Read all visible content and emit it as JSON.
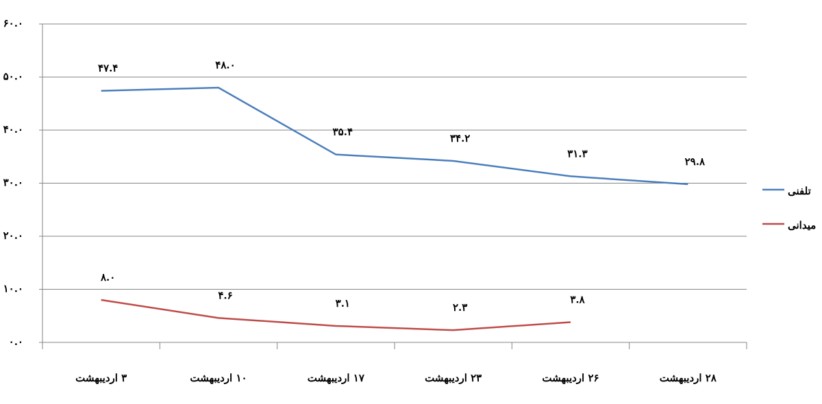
{
  "chart_data": {
    "type": "line",
    "categories": [
      "۳ اردیبهشت",
      "۱۰ اردیبهشت",
      "۱۷ اردیبهشت",
      "۲۳ اردیبهشت",
      "۲۶ اردیبهشت",
      "۲۸ اردیبهشت"
    ],
    "series": [
      {
        "name": "تلفنی",
        "color": "#4a7ebb",
        "values": [
          47.4,
          48.0,
          35.4,
          34.2,
          31.3,
          29.8
        ],
        "value_labels": [
          "۴۷.۴",
          "۴۸.۰",
          "۳۵.۴",
          "۳۴.۲",
          "۳۱.۳",
          "۲۹.۸"
        ]
      },
      {
        "name": "میدانی",
        "color": "#be4b48",
        "values": [
          8.0,
          4.6,
          3.1,
          2.3,
          3.8,
          null
        ],
        "value_labels": [
          "۸.۰",
          "۴.۶",
          "۳.۱",
          "۲.۳",
          "۳.۸",
          null
        ]
      }
    ],
    "ylim": [
      0,
      60
    ],
    "yticks": [
      {
        "value": 0,
        "label": "۰.۰"
      },
      {
        "value": 10,
        "label": "۱۰.۰"
      },
      {
        "value": 20,
        "label": "۲۰.۰"
      },
      {
        "value": 30,
        "label": "۳۰.۰"
      },
      {
        "value": 40,
        "label": "۴۰.۰"
      },
      {
        "value": 50,
        "label": "۵۰.۰"
      },
      {
        "value": 60,
        "label": "۶۰.۰"
      }
    ],
    "grid": true,
    "legend": "right"
  }
}
